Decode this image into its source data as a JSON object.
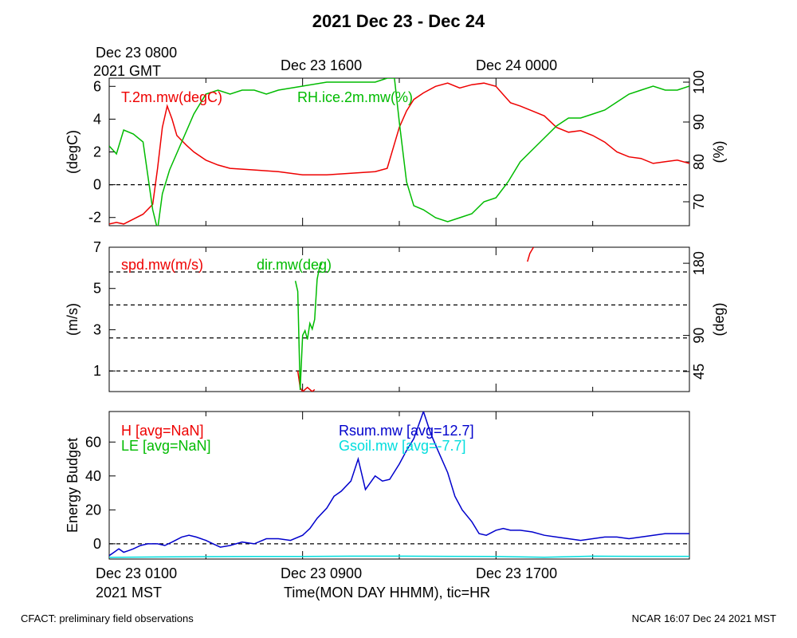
{
  "title": "2021 Dec 23 - Dec 24",
  "top_axis": {
    "labels": [
      {
        "line1": "Dec 23 0800",
        "line2": "2021 GMT"
      },
      {
        "line1": "Dec 23 1600",
        "line2": ""
      },
      {
        "line1": "Dec 24 0000",
        "line2": ""
      }
    ]
  },
  "bottom_axis": {
    "labels": [
      {
        "line1": "Dec 23 0100",
        "line2": "2021 MST"
      },
      {
        "line1": "Dec 23 0900",
        "line2": ""
      },
      {
        "line1": "Dec 23 1700",
        "line2": ""
      }
    ],
    "xlabel": "Time(MON DAY HHMM), tic=HR"
  },
  "footer": {
    "left": "CFACT: preliminary field observations",
    "right": "NCAR 16:07 Dec 24 2021 MST"
  },
  "colors": {
    "red": "#ee0000",
    "green": "#00bb00",
    "blue": "#0000cc",
    "cyan": "#00dddd"
  },
  "chart_data": [
    {
      "type": "line",
      "xlim": [
        1,
        25
      ],
      "ylim_left": [
        -2.5,
        6.5
      ],
      "left_ticks": [
        "-2",
        "0",
        "2",
        "4",
        "6"
      ],
      "ylabel_left": "(degC)",
      "ylim_right": [
        64,
        101
      ],
      "right_ticks": [
        "70",
        "80",
        "90",
        "100"
      ],
      "ylabel_right": "(%)",
      "zero_line": 0,
      "series": [
        {
          "name": "T.2m.mw(degC)",
          "axis": "left",
          "color": "red",
          "x": [
            1.0,
            1.3,
            1.6,
            2.0,
            2.4,
            2.8,
            3.0,
            3.2,
            3.4,
            3.6,
            3.8,
            4.0,
            4.2,
            4.5,
            5.0,
            5.5,
            6.0,
            7.0,
            8.0,
            9.0,
            10.0,
            11.0,
            12.0,
            12.5,
            13.0,
            13.3,
            13.6,
            14.0,
            14.5,
            15.0,
            15.5,
            16.0,
            16.5,
            17.0,
            17.3,
            17.6,
            18.0,
            18.5,
            19.0,
            19.5,
            20.0,
            20.5,
            21.0,
            21.5,
            22.0,
            22.5,
            23.0,
            23.5,
            24.0,
            24.5,
            25.0
          ],
          "y": [
            -2.4,
            -2.3,
            -2.4,
            -2.1,
            -1.8,
            -1.2,
            1.0,
            3.5,
            4.8,
            4.0,
            3.0,
            2.7,
            2.4,
            2.0,
            1.5,
            1.2,
            1.0,
            0.9,
            0.8,
            0.6,
            0.6,
            0.7,
            0.8,
            1.0,
            3.5,
            4.5,
            5.2,
            5.6,
            6.0,
            6.2,
            5.9,
            6.1,
            6.2,
            6.0,
            5.5,
            5.0,
            4.8,
            4.5,
            4.2,
            3.5,
            3.2,
            3.3,
            3.0,
            2.6,
            2.0,
            1.7,
            1.6,
            1.3,
            1.4,
            1.5,
            1.3
          ]
        },
        {
          "name": "RH.ice.2m.mw(%)",
          "axis": "right",
          "color": "green",
          "x": [
            1.0,
            1.3,
            1.6,
            2.0,
            2.4,
            2.8,
            3.0,
            3.2,
            3.5,
            4.0,
            4.5,
            5.0,
            5.5,
            6.0,
            6.5,
            7.0,
            7.5,
            8.0,
            9.0,
            10.0,
            11.0,
            12.0,
            12.5,
            12.8,
            13.0,
            13.3,
            13.6,
            14.0,
            14.5,
            15.0,
            15.5,
            16.0,
            16.5,
            17.0,
            17.5,
            18.0,
            18.5,
            19.0,
            19.5,
            20.0,
            20.5,
            21.0,
            21.5,
            22.0,
            22.5,
            23.0,
            23.5,
            24.0,
            24.5,
            25.0
          ],
          "y": [
            84,
            82,
            88,
            87,
            85,
            68,
            63,
            72,
            78,
            85,
            92,
            97,
            98,
            97,
            98,
            98,
            97,
            98,
            99,
            100,
            100,
            100,
            101,
            101,
            90,
            75,
            69,
            68,
            66,
            65,
            66,
            67,
            70,
            71,
            75,
            80,
            83,
            86,
            89,
            91,
            91,
            92,
            93,
            95,
            97,
            98,
            99,
            98,
            98,
            99
          ]
        }
      ]
    },
    {
      "type": "line",
      "xlim": [
        1,
        25
      ],
      "ylim_left": [
        0,
        7
      ],
      "left_ticks": [
        "1",
        "3",
        "5",
        "7"
      ],
      "ylabel_left": "(m/s)",
      "ylim_right": [
        20,
        200
      ],
      "right_ticks": [
        "45",
        "90",
        "180"
      ],
      "ylabel_right": "(deg)",
      "dashed_lines_left": [
        1.0,
        2.6,
        4.2,
        5.8
      ],
      "series": [
        {
          "name": "spd.mw(m/s)",
          "axis": "left",
          "color": "red",
          "segments": [
            {
              "x": [
                8.8,
                8.9,
                9.0,
                9.2,
                9.4,
                9.5
              ],
              "y": [
                1.0,
                0.2,
                0.0,
                0.2,
                0.0,
                0.1
              ]
            },
            {
              "x": [
                18.3,
                18.4,
                18.55
              ],
              "y": [
                6.3,
                6.7,
                7.0
              ]
            }
          ]
        },
        {
          "name": "dir.mw(deg)",
          "axis": "right",
          "color": "green",
          "segments": [
            {
              "x": [
                8.7,
                8.8,
                8.9,
                9.0,
                9.1,
                9.2,
                9.3,
                9.4,
                9.5,
                9.6,
                9.7,
                9.8
              ],
              "y": [
                158,
                145,
                22,
                90,
                96,
                85,
                105,
                98,
                110,
                160,
                175,
                180
              ]
            }
          ]
        }
      ]
    },
    {
      "type": "line",
      "xlim": [
        1,
        25
      ],
      "ylim": [
        -9,
        78
      ],
      "left_ticks": [
        "0",
        "20",
        "40",
        "60"
      ],
      "ylabel_left": "Energy Budget",
      "zero_line": 0,
      "series": [
        {
          "name": "H [avg=NaN]",
          "color": "red",
          "x": [],
          "y": []
        },
        {
          "name": "LE [avg=NaN]",
          "color": "green",
          "x": [],
          "y": []
        },
        {
          "name": "Rsum.mw [avg=12.7]",
          "color": "blue",
          "x": [
            1.0,
            1.2,
            1.4,
            1.6,
            1.8,
            2.0,
            2.3,
            2.6,
            3.0,
            3.3,
            3.6,
            4.0,
            4.3,
            4.6,
            5.0,
            5.3,
            5.6,
            6.0,
            6.5,
            7.0,
            7.5,
            8.0,
            8.5,
            9.0,
            9.3,
            9.6,
            10.0,
            10.3,
            10.6,
            11.0,
            11.3,
            11.6,
            12.0,
            12.3,
            12.6,
            13.0,
            13.3,
            13.6,
            14.0,
            14.3,
            14.6,
            15.0,
            15.3,
            15.6,
            16.0,
            16.3,
            16.6,
            17.0,
            17.3,
            17.6,
            18.0,
            18.5,
            19.0,
            19.5,
            20.0,
            20.5,
            21.0,
            21.5,
            22.0,
            22.5,
            23.0,
            23.5,
            24.0,
            24.5,
            25.0
          ],
          "y": [
            -7,
            -5,
            -3,
            -5,
            -4,
            -3,
            -1,
            0,
            0,
            -1,
            1,
            4,
            5,
            4,
            2,
            0,
            -2,
            -1,
            1,
            0,
            3,
            3,
            2,
            5,
            9,
            15,
            21,
            28,
            31,
            37,
            50,
            32,
            40,
            37,
            38,
            47,
            55,
            62,
            78,
            65,
            55,
            42,
            28,
            20,
            13,
            6,
            5,
            8,
            9,
            8,
            8,
            7,
            5,
            4,
            3,
            2,
            3,
            4,
            4,
            3,
            4,
            5,
            6,
            6,
            6
          ]
        },
        {
          "name": "Gsoil.mw [avg=-7.7]",
          "color": "cyan",
          "x": [
            1.0,
            3.0,
            5.0,
            7.0,
            9.0,
            11.0,
            13.0,
            15.0,
            17.0,
            19.0,
            21.0,
            23.0,
            25.0
          ],
          "y": [
            -8,
            -7.8,
            -7.6,
            -7.5,
            -7.5,
            -7.3,
            -7.3,
            -7.4,
            -7.5,
            -7.9,
            -7.3,
            -7.4,
            -7.4
          ]
        }
      ]
    }
  ]
}
